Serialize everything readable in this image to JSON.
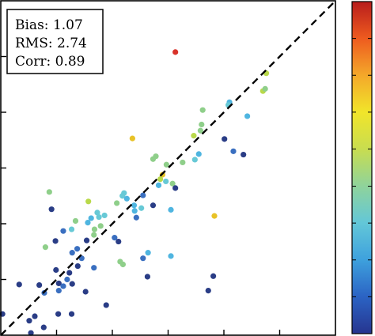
{
  "chart_data": {
    "type": "scatter",
    "title": "",
    "xlabel": "",
    "ylabel": "",
    "xlim": [
      0,
      6
    ],
    "ylim": [
      0,
      6
    ],
    "grid": false,
    "reference_line": {
      "style": "dashed",
      "color": "#000000",
      "from": [
        0,
        0
      ],
      "to": [
        6,
        6
      ]
    },
    "stats": [
      {
        "label": "Bias:",
        "value": "1.07"
      },
      {
        "label": "RMS:",
        "value": "2.74"
      },
      {
        "label": "Corr:",
        "value": "0.89"
      }
    ],
    "colorbar": {
      "orientation": "vertical",
      "range": [
        0,
        1
      ],
      "colors": [
        "#26358f",
        "#2b63c4",
        "#3ea1dd",
        "#63c7d8",
        "#8fd39b",
        "#c8dd50",
        "#f1e52a",
        "#f4a82a",
        "#ee5b1f",
        "#b81c1c"
      ],
      "ticks": [
        0.0,
        0.111,
        0.222,
        0.333,
        0.444,
        0.556,
        0.667,
        0.778,
        0.889,
        1.0
      ]
    },
    "point_colors": {
      "navy": "#2a3d86",
      "blue": "#3a6fc0",
      "lightblue": "#4fb5e0",
      "cyan": "#67c9d6",
      "green": "#8fcf8a",
      "yellowgreen": "#b9d94a",
      "yellow": "#e8c227",
      "red": "#d8322a"
    },
    "series": [
      {
        "points": [
          {
            "x": 3.13,
            "y": 5.08,
            "c": "red"
          },
          {
            "x": 4.76,
            "y": 4.7,
            "c": "yellowgreen"
          },
          {
            "x": 4.7,
            "y": 4.38,
            "c": "yellowgreen"
          },
          {
            "x": 4.74,
            "y": 4.42,
            "c": "green"
          },
          {
            "x": 4.1,
            "y": 4.18,
            "c": "lightblue"
          },
          {
            "x": 4.08,
            "y": 4.13,
            "c": "cyan"
          },
          {
            "x": 3.62,
            "y": 4.04,
            "c": "green"
          },
          {
            "x": 4.42,
            "y": 3.93,
            "c": "lightblue"
          },
          {
            "x": 3.6,
            "y": 3.78,
            "c": "green"
          },
          {
            "x": 3.46,
            "y": 3.58,
            "c": "yellowgreen"
          },
          {
            "x": 3.58,
            "y": 3.67,
            "c": "green"
          },
          {
            "x": 2.36,
            "y": 3.53,
            "c": "yellow"
          },
          {
            "x": 4.01,
            "y": 3.52,
            "c": "navy"
          },
          {
            "x": 4.17,
            "y": 3.3,
            "c": "blue"
          },
          {
            "x": 4.35,
            "y": 3.24,
            "c": "navy"
          },
          {
            "x": 3.55,
            "y": 3.25,
            "c": "lightblue"
          },
          {
            "x": 2.78,
            "y": 3.21,
            "c": "green"
          },
          {
            "x": 2.73,
            "y": 3.16,
            "c": "green"
          },
          {
            "x": 2.97,
            "y": 3.06,
            "c": "green"
          },
          {
            "x": 3.26,
            "y": 3.1,
            "c": "green"
          },
          {
            "x": 3.48,
            "y": 3.15,
            "c": "cyan"
          },
          {
            "x": 2.9,
            "y": 2.88,
            "c": "yellow"
          },
          {
            "x": 2.86,
            "y": 2.8,
            "c": "yellowgreen"
          },
          {
            "x": 3.08,
            "y": 2.72,
            "c": "green"
          },
          {
            "x": 2.96,
            "y": 2.76,
            "c": "cyan"
          },
          {
            "x": 2.83,
            "y": 2.69,
            "c": "lightblue"
          },
          {
            "x": 3.13,
            "y": 2.64,
            "c": "navy"
          },
          {
            "x": 2.55,
            "y": 2.51,
            "c": "blue"
          },
          {
            "x": 2.21,
            "y": 2.55,
            "c": "cyan"
          },
          {
            "x": 2.73,
            "y": 2.33,
            "c": "navy"
          },
          {
            "x": 0.87,
            "y": 2.57,
            "c": "green"
          },
          {
            "x": 2.18,
            "y": 2.5,
            "c": "cyan"
          },
          {
            "x": 2.26,
            "y": 2.45,
            "c": "lightblue"
          },
          {
            "x": 2.39,
            "y": 2.33,
            "c": "lightblue"
          },
          {
            "x": 2.08,
            "y": 2.37,
            "c": "green"
          },
          {
            "x": 1.57,
            "y": 2.4,
            "c": "yellowgreen"
          },
          {
            "x": 2.52,
            "y": 2.28,
            "c": "cyan"
          },
          {
            "x": 2.4,
            "y": 2.23,
            "c": "lightblue"
          },
          {
            "x": 3.05,
            "y": 2.25,
            "c": "lightblue"
          },
          {
            "x": 3.83,
            "y": 2.14,
            "c": "yellow"
          },
          {
            "x": 2.43,
            "y": 2.11,
            "c": "blue"
          },
          {
            "x": 0.91,
            "y": 2.26,
            "c": "navy"
          },
          {
            "x": 1.73,
            "y": 2.2,
            "c": "cyan"
          },
          {
            "x": 1.86,
            "y": 2.15,
            "c": "cyan"
          },
          {
            "x": 1.76,
            "y": 2.12,
            "c": "cyan"
          },
          {
            "x": 1.62,
            "y": 2.1,
            "c": "lightblue"
          },
          {
            "x": 1.56,
            "y": 2.02,
            "c": "lightblue"
          },
          {
            "x": 1.79,
            "y": 1.96,
            "c": "green"
          },
          {
            "x": 1.34,
            "y": 2.05,
            "c": "green"
          },
          {
            "x": 1.27,
            "y": 1.9,
            "c": "cyan"
          },
          {
            "x": 1.68,
            "y": 1.9,
            "c": "green"
          },
          {
            "x": 1.12,
            "y": 1.87,
            "c": "blue"
          },
          {
            "x": 1.67,
            "y": 1.8,
            "c": "green"
          },
          {
            "x": 0.98,
            "y": 1.69,
            "c": "navy"
          },
          {
            "x": 1.54,
            "y": 1.7,
            "c": "navy"
          },
          {
            "x": 2.04,
            "y": 1.75,
            "c": "blue"
          },
          {
            "x": 2.11,
            "y": 1.68,
            "c": "navy"
          },
          {
            "x": 1.37,
            "y": 1.55,
            "c": "blue"
          },
          {
            "x": 0.8,
            "y": 1.58,
            "c": "green"
          },
          {
            "x": 1.28,
            "y": 1.48,
            "c": "blue"
          },
          {
            "x": 1.45,
            "y": 1.38,
            "c": "blue"
          },
          {
            "x": 2.64,
            "y": 1.48,
            "c": "lightblue"
          },
          {
            "x": 2.55,
            "y": 1.38,
            "c": "blue"
          },
          {
            "x": 3.05,
            "y": 1.42,
            "c": "lightblue"
          },
          {
            "x": 2.19,
            "y": 1.27,
            "c": "green"
          },
          {
            "x": 2.14,
            "y": 1.32,
            "c": "green"
          },
          {
            "x": 1.38,
            "y": 1.24,
            "c": "navy"
          },
          {
            "x": 1.67,
            "y": 1.21,
            "c": "blue"
          },
          {
            "x": 0.99,
            "y": 1.17,
            "c": "navy"
          },
          {
            "x": 1.23,
            "y": 1.12,
            "c": "navy"
          },
          {
            "x": 1.19,
            "y": 1.0,
            "c": "blue"
          },
          {
            "x": 2.63,
            "y": 1.05,
            "c": "navy"
          },
          {
            "x": 3.81,
            "y": 1.06,
            "c": "navy"
          },
          {
            "x": 1.04,
            "y": 0.93,
            "c": "navy"
          },
          {
            "x": 1.12,
            "y": 0.88,
            "c": "blue"
          },
          {
            "x": 1.28,
            "y": 0.92,
            "c": "navy"
          },
          {
            "x": 0.33,
            "y": 0.91,
            "c": "navy"
          },
          {
            "x": 0.69,
            "y": 0.9,
            "c": "navy"
          },
          {
            "x": 1.04,
            "y": 0.8,
            "c": "blue"
          },
          {
            "x": 0.78,
            "y": 0.76,
            "c": "blue"
          },
          {
            "x": 1.52,
            "y": 0.78,
            "c": "navy"
          },
          {
            "x": 3.72,
            "y": 0.8,
            "c": "navy"
          },
          {
            "x": 1.89,
            "y": 0.54,
            "c": "navy"
          },
          {
            "x": 0.03,
            "y": 0.38,
            "c": "navy"
          },
          {
            "x": 0.61,
            "y": 0.34,
            "c": "navy"
          },
          {
            "x": 1.03,
            "y": 0.38,
            "c": "navy"
          },
          {
            "x": 1.27,
            "y": 0.38,
            "c": "navy"
          },
          {
            "x": 0.51,
            "y": 0.26,
            "c": "navy"
          },
          {
            "x": 0.77,
            "y": 0.14,
            "c": "navy"
          },
          {
            "x": 0.54,
            "y": 0.04,
            "c": "navy"
          }
        ]
      }
    ]
  }
}
